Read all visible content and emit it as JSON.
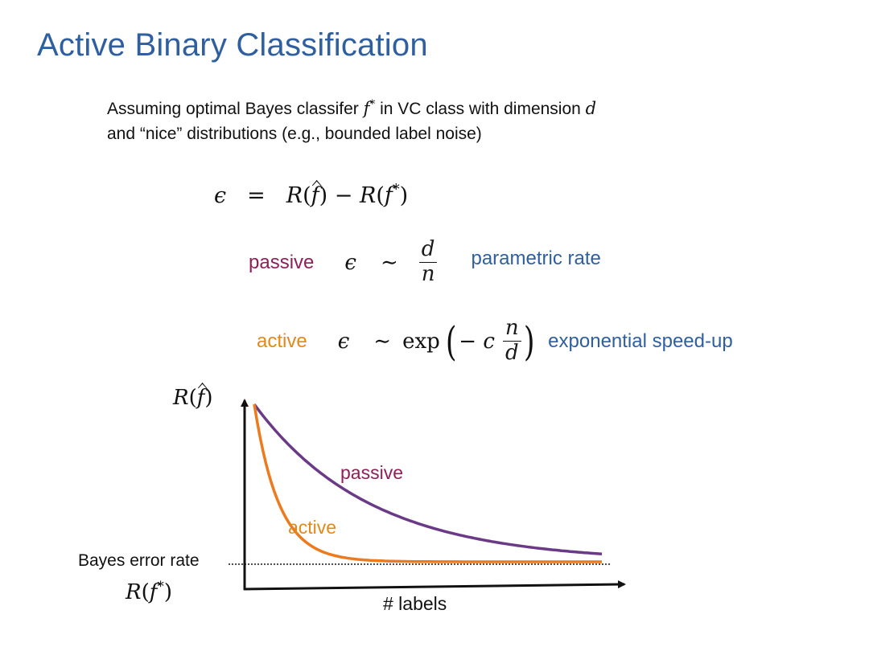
{
  "slide": {
    "title": "Active Binary Classification",
    "intro_line1_a": "Assuming optimal Bayes classifer ",
    "intro_f": "f",
    "intro_star": "*",
    "intro_line1_b": " in VC class with dimension ",
    "intro_d": "d",
    "intro_line2": "and “nice” distributions (e.g., bounded label noise)"
  },
  "equation": {
    "epsilon": "ϵ",
    "equals": "=",
    "lhs_R": "R(",
    "f": "f",
    "close": ")",
    "minus": " − R(",
    "fstar": "f",
    "star": "*",
    "close2": ")"
  },
  "passive_rate": {
    "label": "passive",
    "epsilon": "ϵ",
    "sim": "∼",
    "num": "d",
    "den": "n",
    "description": "parametric rate"
  },
  "active_rate": {
    "label": "active",
    "epsilon": "ϵ",
    "sim": "∼",
    "exp": "exp",
    "minus_c": "− c",
    "num": "n",
    "den": "d",
    "description": "exponential speed-up"
  },
  "chart_data": {
    "type": "line",
    "title": "",
    "ylabel": "R(f̂)",
    "xlabel": "# labels",
    "baseline_label": "Bayes error rate",
    "baseline_math": "R(f*)",
    "series": [
      {
        "name": "passive",
        "color": "#6b3a86",
        "decay": 3.0
      },
      {
        "name": "active",
        "color": "#ec7a1e",
        "decay": 14.0
      }
    ],
    "colors": {
      "axis": "#111111",
      "passive_label": "#8d1f5a",
      "active_label": "#e08a1c"
    }
  }
}
